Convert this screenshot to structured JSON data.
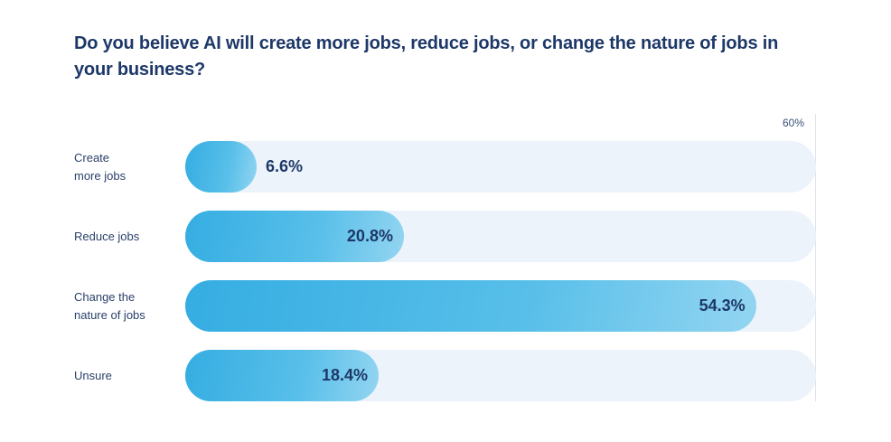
{
  "chart_data": {
    "type": "bar",
    "orientation": "horizontal",
    "title": "Do you believe AI will create more jobs, reduce jobs, or change the nature of jobs in your business?",
    "categories": [
      "Create more jobs",
      "Reduce jobs",
      "Change the nature of jobs",
      "Unsure"
    ],
    "category_labels": [
      [
        "Create",
        "more jobs"
      ],
      [
        "Reduce jobs"
      ],
      [
        "Change the",
        "nature of jobs"
      ],
      [
        "Unsure"
      ]
    ],
    "values": [
      6.6,
      20.8,
      54.3,
      18.4
    ],
    "value_labels": [
      "6.6%",
      "20.8%",
      "54.3%",
      "18.4%"
    ],
    "xlim": [
      0,
      60
    ],
    "x_tick_labels": [
      "60%"
    ],
    "xlabel": "",
    "ylabel": "",
    "grid": false,
    "legend": null,
    "colors": {
      "bar_start": "#35ade2",
      "bar_end": "#93d5f1",
      "track": "#edf3fb",
      "text": "#1d3868"
    }
  }
}
